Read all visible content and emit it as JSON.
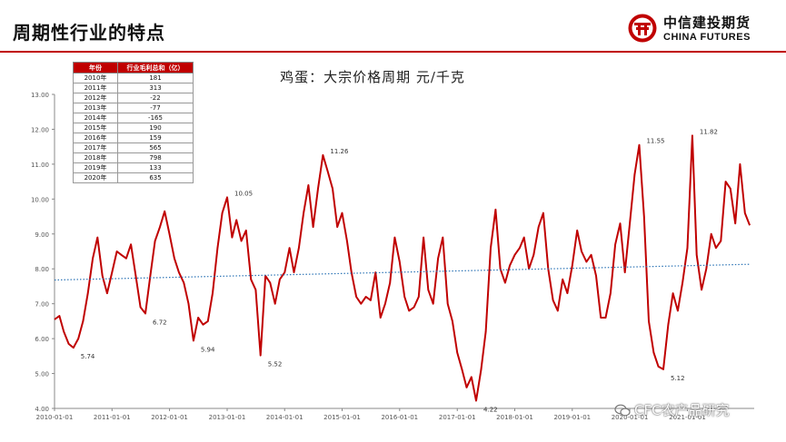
{
  "header": {
    "title": "周期性行业的特点",
    "logo_cn": "中信建投期货",
    "logo_en": "CHINA FUTURES",
    "accent_color": "#c00000"
  },
  "table": {
    "headers": [
      "年份",
      "行业毛利总和（亿）"
    ],
    "rows": [
      {
        "year": "2010年",
        "value": "181"
      },
      {
        "year": "2011年",
        "value": "313"
      },
      {
        "year": "2012年",
        "value": "-22"
      },
      {
        "year": "2013年",
        "value": "-77"
      },
      {
        "year": "2014年",
        "value": "-165"
      },
      {
        "year": "2015年",
        "value": "190"
      },
      {
        "year": "2016年",
        "value": "159"
      },
      {
        "year": "2017年",
        "value": "565"
      },
      {
        "year": "2018年",
        "value": "798"
      },
      {
        "year": "2019年",
        "value": "133"
      },
      {
        "year": "2020年",
        "value": "635"
      }
    ]
  },
  "watermark": {
    "text": "CFC农产品研究",
    "icon": "wechat-icon"
  },
  "chart_data": {
    "type": "line",
    "title": "鸡蛋：大宗价格周期 元/千克",
    "ylim": [
      4.0,
      13.0
    ],
    "yticks": [
      "4.00",
      "5.00",
      "6.00",
      "7.00",
      "8.00",
      "9.00",
      "10.00",
      "11.00",
      "12.00",
      "13.00"
    ],
    "xticks": [
      "2010-01-01",
      "2011-01-01",
      "2012-01-01",
      "2013-01-01",
      "2014-01-01",
      "2015-01-01",
      "2016-01-01",
      "2017-01-01",
      "2018-01-01",
      "2019-01-01",
      "2020-01-01",
      "2021-01-01"
    ],
    "grid": false,
    "series": [
      {
        "color": "#c00000",
        "points": [
          [
            "2010-01-01",
            6.55
          ],
          [
            "2010-02-01",
            6.65
          ],
          [
            "2010-03-01",
            6.2
          ],
          [
            "2010-04-01",
            5.85
          ],
          [
            "2010-05-01",
            5.74
          ],
          [
            "2010-06-01",
            6.0
          ],
          [
            "2010-07-01",
            6.5
          ],
          [
            "2010-08-01",
            7.3
          ],
          [
            "2010-09-01",
            8.3
          ],
          [
            "2010-10-01",
            8.9
          ],
          [
            "2010-11-01",
            7.8
          ],
          [
            "2010-12-01",
            7.3
          ],
          [
            "2011-01-01",
            7.9
          ],
          [
            "2011-02-01",
            8.5
          ],
          [
            "2011-03-01",
            8.4
          ],
          [
            "2011-04-01",
            8.3
          ],
          [
            "2011-05-01",
            8.7
          ],
          [
            "2011-06-01",
            7.8
          ],
          [
            "2011-07-01",
            6.9
          ],
          [
            "2011-08-01",
            6.72
          ],
          [
            "2011-09-01",
            7.8
          ],
          [
            "2011-10-01",
            8.8
          ],
          [
            "2011-11-01",
            9.2
          ],
          [
            "2011-12-01",
            9.65
          ],
          [
            "2012-01-01",
            9.0
          ],
          [
            "2012-02-01",
            8.3
          ],
          [
            "2012-03-01",
            7.9
          ],
          [
            "2012-04-01",
            7.6
          ],
          [
            "2012-05-01",
            7.0
          ],
          [
            "2012-06-01",
            5.94
          ],
          [
            "2012-07-01",
            6.6
          ],
          [
            "2012-08-01",
            6.4
          ],
          [
            "2012-09-01",
            6.5
          ],
          [
            "2012-10-01",
            7.3
          ],
          [
            "2012-11-01",
            8.6
          ],
          [
            "2012-12-01",
            9.6
          ],
          [
            "2013-01-01",
            10.05
          ],
          [
            "2013-02-01",
            8.9
          ],
          [
            "2013-03-01",
            9.4
          ],
          [
            "2013-04-01",
            8.8
          ],
          [
            "2013-05-01",
            9.1
          ],
          [
            "2013-06-01",
            7.7
          ],
          [
            "2013-07-01",
            7.4
          ],
          [
            "2013-08-01",
            5.52
          ],
          [
            "2013-09-01",
            7.8
          ],
          [
            "2013-10-01",
            7.6
          ],
          [
            "2013-11-01",
            7.0
          ],
          [
            "2013-12-01",
            7.7
          ],
          [
            "2014-01-01",
            7.9
          ],
          [
            "2014-02-01",
            8.6
          ],
          [
            "2014-03-01",
            7.9
          ],
          [
            "2014-04-01",
            8.6
          ],
          [
            "2014-05-01",
            9.6
          ],
          [
            "2014-06-01",
            10.4
          ],
          [
            "2014-07-01",
            9.2
          ],
          [
            "2014-08-01",
            10.3
          ],
          [
            "2014-09-01",
            11.26
          ],
          [
            "2014-10-01",
            10.8
          ],
          [
            "2014-11-01",
            10.3
          ],
          [
            "2014-12-01",
            9.2
          ],
          [
            "2015-01-01",
            9.6
          ],
          [
            "2015-02-01",
            8.8
          ],
          [
            "2015-03-01",
            7.9
          ],
          [
            "2015-04-01",
            7.2
          ],
          [
            "2015-05-01",
            7.0
          ],
          [
            "2015-06-01",
            7.2
          ],
          [
            "2015-07-01",
            7.1
          ],
          [
            "2015-08-01",
            7.9
          ],
          [
            "2015-09-01",
            6.6
          ],
          [
            "2015-10-01",
            7.0
          ],
          [
            "2015-11-01",
            7.6
          ],
          [
            "2015-12-01",
            8.9
          ],
          [
            "2016-01-01",
            8.2
          ],
          [
            "2016-02-01",
            7.2
          ],
          [
            "2016-03-01",
            6.8
          ],
          [
            "2016-04-01",
            6.9
          ],
          [
            "2016-05-01",
            7.2
          ],
          [
            "2016-06-01",
            8.9
          ],
          [
            "2016-07-01",
            7.4
          ],
          [
            "2016-08-01",
            7.0
          ],
          [
            "2016-09-01",
            8.3
          ],
          [
            "2016-10-01",
            8.9
          ],
          [
            "2016-11-01",
            7.0
          ],
          [
            "2016-12-01",
            6.5
          ],
          [
            "2017-01-01",
            5.6
          ],
          [
            "2017-02-01",
            5.1
          ],
          [
            "2017-03-01",
            4.6
          ],
          [
            "2017-04-01",
            4.9
          ],
          [
            "2017-05-01",
            4.22
          ],
          [
            "2017-06-01",
            5.1
          ],
          [
            "2017-07-01",
            6.2
          ],
          [
            "2017-08-01",
            8.6
          ],
          [
            "2017-09-01",
            9.7
          ],
          [
            "2017-10-01",
            8.0
          ],
          [
            "2017-11-01",
            7.6
          ],
          [
            "2017-12-01",
            8.1
          ],
          [
            "2018-01-01",
            8.4
          ],
          [
            "2018-02-01",
            8.6
          ],
          [
            "2018-03-01",
            8.9
          ],
          [
            "2018-04-01",
            8.0
          ],
          [
            "2018-05-01",
            8.4
          ],
          [
            "2018-06-01",
            9.2
          ],
          [
            "2018-07-01",
            9.6
          ],
          [
            "2018-08-01",
            8.0
          ],
          [
            "2018-09-01",
            7.1
          ],
          [
            "2018-10-01",
            6.8
          ],
          [
            "2018-11-01",
            7.7
          ],
          [
            "2018-12-01",
            7.3
          ],
          [
            "2019-01-01",
            8.1
          ],
          [
            "2019-02-01",
            9.1
          ],
          [
            "2019-03-01",
            8.5
          ],
          [
            "2019-04-01",
            8.2
          ],
          [
            "2019-05-01",
            8.4
          ],
          [
            "2019-06-01",
            7.8
          ],
          [
            "2019-07-01",
            6.6
          ],
          [
            "2019-08-01",
            6.6
          ],
          [
            "2019-09-01",
            7.3
          ],
          [
            "2019-10-01",
            8.7
          ],
          [
            "2019-11-01",
            9.3
          ],
          [
            "2019-12-01",
            7.9
          ],
          [
            "2020-01-01",
            9.3
          ],
          [
            "2020-02-01",
            10.7
          ],
          [
            "2020-03-01",
            11.55
          ],
          [
            "2020-04-01",
            9.5
          ],
          [
            "2020-05-01",
            6.5
          ],
          [
            "2020-06-01",
            5.6
          ],
          [
            "2020-07-01",
            5.2
          ],
          [
            "2020-08-01",
            5.12
          ],
          [
            "2020-09-01",
            6.4
          ],
          [
            "2020-10-01",
            7.3
          ],
          [
            "2020-11-01",
            6.8
          ],
          [
            "2020-12-01",
            7.6
          ],
          [
            "2021-01-01",
            8.6
          ],
          [
            "2021-02-01",
            11.82
          ],
          [
            "2021-03-01",
            8.4
          ],
          [
            "2021-04-01",
            7.4
          ],
          [
            "2021-05-01",
            8.0
          ],
          [
            "2021-06-01",
            9.0
          ],
          [
            "2021-07-01",
            8.6
          ],
          [
            "2021-08-01",
            8.8
          ],
          [
            "2021-09-01",
            10.5
          ],
          [
            "2021-10-01",
            10.3
          ],
          [
            "2021-11-01",
            9.3
          ],
          [
            "2021-12-01",
            11.0
          ],
          [
            "2022-01-01",
            9.6
          ],
          [
            "2022-02-01",
            9.25
          ]
        ]
      },
      {
        "color": "#2e75b6",
        "style": "dotted",
        "points": [
          [
            "2010-01-01",
            7.68
          ],
          [
            "2022-02-01",
            8.13
          ]
        ]
      }
    ],
    "annotations": [
      {
        "x": "2010-05-01",
        "y": 5.74,
        "text": "5.74"
      },
      {
        "x": "2011-08-01",
        "y": 6.72,
        "text": "6.72"
      },
      {
        "x": "2012-06-01",
        "y": 5.94,
        "text": "5.94"
      },
      {
        "x": "2013-01-01",
        "y": 10.05,
        "text": "10.05"
      },
      {
        "x": "2013-08-01",
        "y": 5.52,
        "text": "5.52"
      },
      {
        "x": "2014-09-01",
        "y": 11.26,
        "text": "11.26"
      },
      {
        "x": "2017-05-01",
        "y": 4.22,
        "text": "4.22"
      },
      {
        "x": "2020-03-01",
        "y": 11.55,
        "text": "11.55"
      },
      {
        "x": "2020-08-01",
        "y": 5.12,
        "text": "5.12"
      },
      {
        "x": "2021-02-01",
        "y": 11.82,
        "text": "11.82"
      }
    ]
  }
}
